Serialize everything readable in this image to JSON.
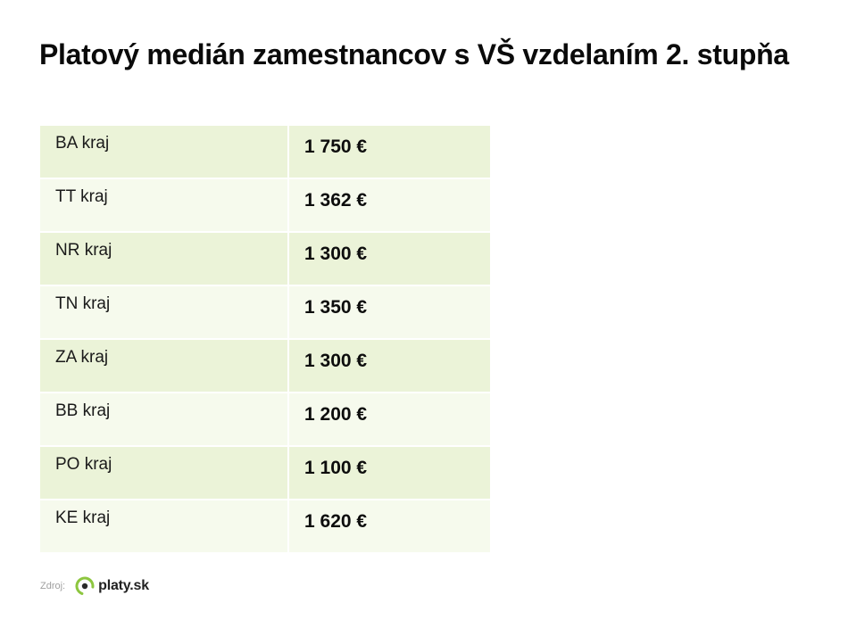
{
  "title": "Platový medián zamestnancov s VŠ vzdelaním 2. stupňa",
  "table": {
    "rows": [
      {
        "region": "BA kraj",
        "value": "1 750 €"
      },
      {
        "region": "TT kraj",
        "value": "1 362 €"
      },
      {
        "region": "NR kraj",
        "value": "1 300 €"
      },
      {
        "region": "TN kraj",
        "value": "1 350 €"
      },
      {
        "region": "ZA kraj",
        "value": "1 300 €"
      },
      {
        "region": "BB kraj",
        "value": "1 200 €"
      },
      {
        "region": "PO kraj",
        "value": "1 100 €"
      },
      {
        "region": "KE kraj",
        "value": "1 620 €"
      }
    ]
  },
  "footer": {
    "source_label": "Zdroj:",
    "logo_text": "platy.sk",
    "logo_icon": "platy-logo-icon"
  },
  "colors": {
    "row_odd": "#ebf3d8",
    "row_even": "#f6faed",
    "logo_green": "#8dc63f",
    "logo_dark": "#2b2b2b"
  }
}
